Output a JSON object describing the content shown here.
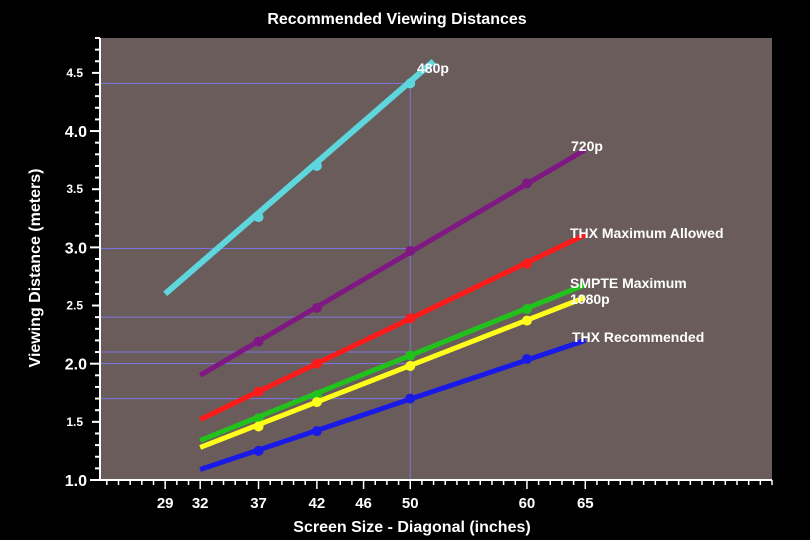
{
  "chart_data": {
    "type": "line",
    "title": "Recommended Viewing Distances",
    "xlabel": "Screen Size - Diagonal (inches)",
    "ylabel": "Viewing Distance (meters)",
    "x_ticks": [
      "29",
      "32",
      "37",
      "42",
      "46",
      "50",
      "60",
      "65"
    ],
    "x_tick_values": [
      29,
      32,
      37,
      42,
      46,
      50,
      60,
      65
    ],
    "y_ticks_major": [
      "1.0",
      "2.0",
      "3.0",
      "4.0"
    ],
    "y_ticks_minor": [
      "1.5",
      "2.5",
      "3.5",
      "4.5"
    ],
    "xlim": [
      23.5,
      81
    ],
    "ylim": [
      1.0,
      4.8
    ],
    "background_color": "#6b5c5c",
    "reference_lines": {
      "color": "#7b74e0",
      "vertical_x": 50,
      "horizontal_y": [
        4.41,
        2.99,
        2.4,
        2.1,
        2.0,
        1.7
      ]
    },
    "series": [
      {
        "name": "480p",
        "color": "#5ed6dd",
        "line_x": [
          29,
          52
        ],
        "line_y": [
          2.6,
          4.6
        ],
        "marker_x": [
          37,
          42,
          50
        ],
        "marker_y": [
          3.26,
          3.7,
          4.41
        ]
      },
      {
        "name": "720p",
        "color": "#7f1883",
        "line_x": [
          32,
          65
        ],
        "line_y": [
          1.9,
          3.84
        ],
        "marker_x": [
          37,
          42,
          50,
          60
        ],
        "marker_y": [
          2.19,
          2.48,
          2.97,
          3.55
        ]
      },
      {
        "name": "THX Maximum Allowed",
        "color": "#ff1a1a",
        "line_x": [
          32,
          65
        ],
        "line_y": [
          1.52,
          3.11
        ],
        "marker_x": [
          37,
          42,
          50,
          60
        ],
        "marker_y": [
          1.76,
          2.0,
          2.39,
          2.86
        ]
      },
      {
        "name": "SMPTE Maximum",
        "color": "#22c21c",
        "line_x": [
          32,
          65
        ],
        "line_y": [
          1.34,
          2.68
        ],
        "marker_x": [
          37,
          42,
          50,
          60
        ],
        "marker_y": [
          1.53,
          1.73,
          2.07,
          2.47
        ]
      },
      {
        "name": "1080p",
        "color": "#ffff1a",
        "line_x": [
          32,
          65
        ],
        "line_y": [
          1.28,
          2.57
        ],
        "marker_x": [
          37,
          42,
          50,
          60
        ],
        "marker_y": [
          1.46,
          1.67,
          1.98,
          2.37
        ]
      },
      {
        "name": "THX Recommended",
        "color": "#1a1ae8",
        "line_x": [
          32,
          65
        ],
        "line_y": [
          1.09,
          2.2
        ],
        "marker_x": [
          37,
          42,
          50,
          60
        ],
        "marker_y": [
          1.25,
          1.42,
          1.7,
          2.04
        ]
      }
    ]
  }
}
